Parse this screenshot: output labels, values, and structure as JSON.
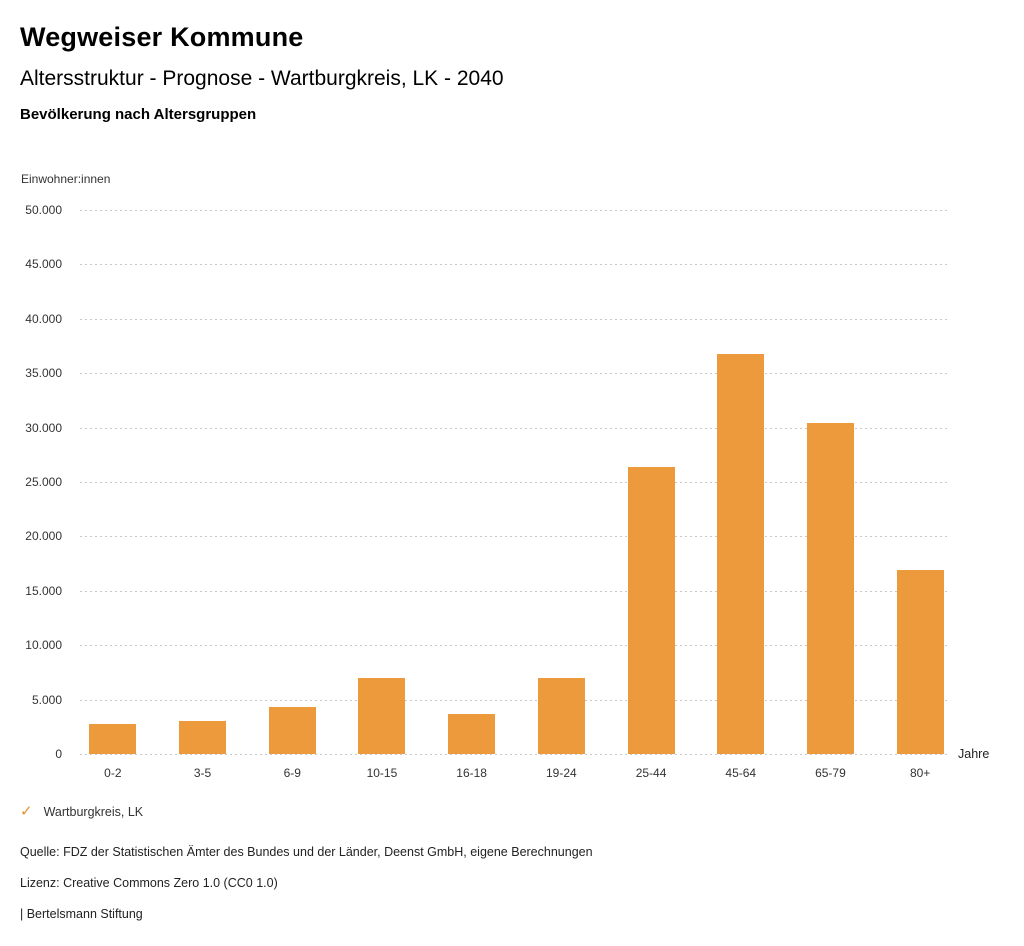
{
  "header": {
    "title": "Wegweiser Kommune",
    "subtitle": "Altersstruktur - Prognose - Wartburgkreis, LK - 2040",
    "chart_heading": "Bevölkerung nach Altersgruppen"
  },
  "chart_data": {
    "type": "bar",
    "title": "Bevölkerung nach Altersgruppen",
    "categories": [
      "0-2",
      "3-5",
      "6-9",
      "10-15",
      "16-18",
      "19-24",
      "25-44",
      "45-64",
      "65-79",
      "80+"
    ],
    "values": [
      2800,
      3000,
      4300,
      7000,
      3700,
      7000,
      26400,
      36800,
      30400,
      16900
    ],
    "series_name": "Wartburgkreis, LK",
    "xlabel": "Jahre",
    "ylabel": "Einwohner:innen",
    "ylim": [
      0,
      50000
    ],
    "ytick_step": 5000,
    "ytick_labels": [
      "0",
      "5.000",
      "10.000",
      "15.000",
      "20.000",
      "25.000",
      "30.000",
      "35.000",
      "40.000",
      "45.000",
      "50.000"
    ],
    "grid": "horizontal-dotted",
    "legend_position": "bottom-left",
    "bar_color": "#EC9A3C"
  },
  "legend": {
    "check_icon": "✓",
    "check_color": "#E8922E",
    "label": "Wartburgkreis, LK"
  },
  "footer": {
    "source": "Quelle: FDZ der Statistischen Ämter des Bundes und der Länder, Deenst GmbH, eigene Berechnungen",
    "license": "Lizenz: Creative Commons Zero 1.0 (CC0 1.0)",
    "attribution": "| Bertelsmann Stiftung"
  }
}
